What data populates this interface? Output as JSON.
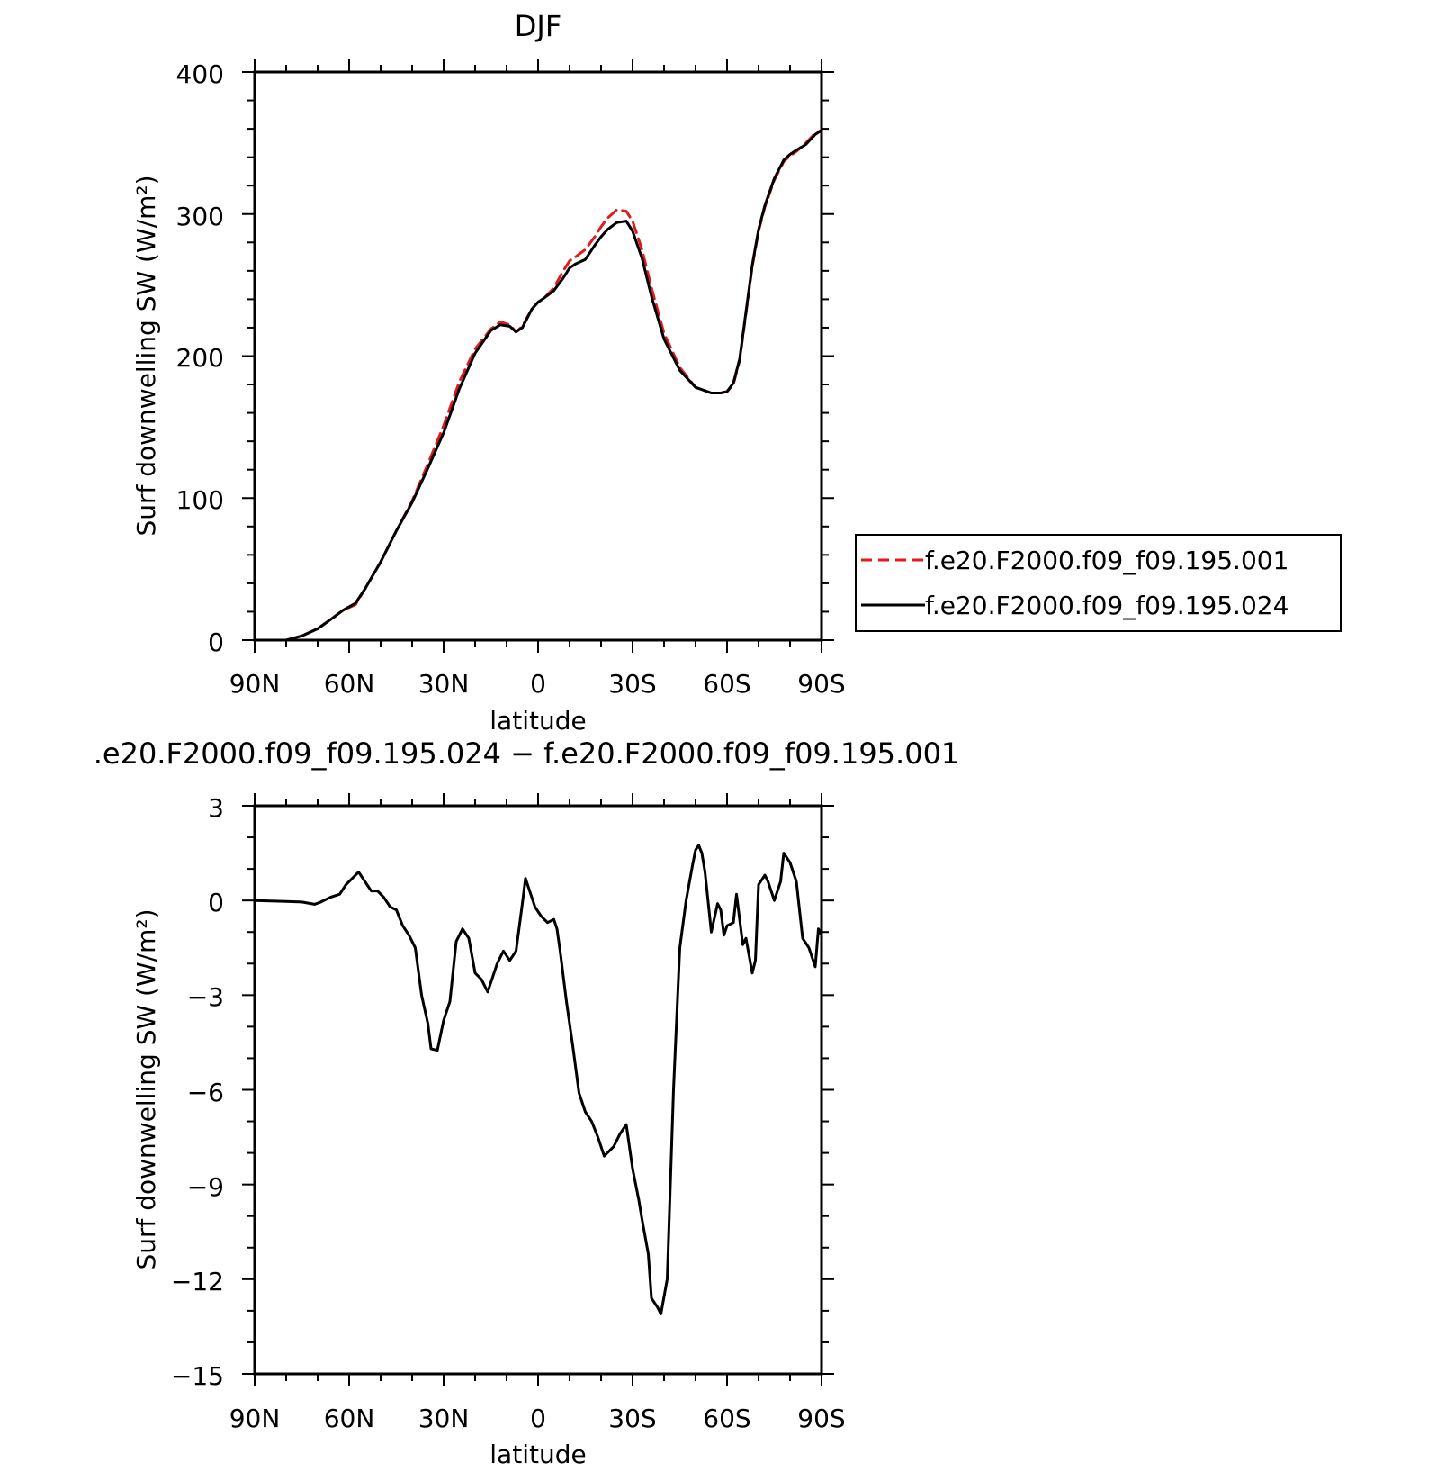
{
  "chart_data": [
    {
      "type": "line",
      "title": "DJF",
      "xlabel": "latitude",
      "ylabel": "Surf downwelling SW (W/m²)",
      "xlim": [
        -90,
        90
      ],
      "ylim": [
        0,
        400
      ],
      "x_direction": "90N on left to 90S on right",
      "xticks": [
        -90,
        -60,
        -30,
        0,
        30,
        60,
        90
      ],
      "xtick_labels": [
        "90N",
        "60N",
        "30N",
        "0",
        "30S",
        "60S",
        "90S"
      ],
      "yticks": [
        0,
        100,
        200,
        300,
        400
      ],
      "ytick_labels": [
        "0",
        "100",
        "200",
        "300",
        "400"
      ],
      "legend_position": "right",
      "series": [
        {
          "name": "f.e20.F2000.f09_f09.195.001",
          "color": "#e31a1c",
          "dash": "dashed",
          "x": [
            -90,
            -80,
            -75,
            -70,
            -65,
            -62,
            -58,
            -55,
            -50,
            -45,
            -40,
            -35,
            -30,
            -25,
            -20,
            -15,
            -12,
            -9,
            -7,
            -5,
            -2,
            0,
            2,
            5,
            8,
            10,
            12,
            15,
            18,
            20,
            22,
            25,
            28,
            30,
            33,
            36,
            40,
            45,
            50,
            55,
            58,
            60,
            62,
            64,
            66,
            68,
            70,
            72,
            75,
            78,
            80,
            82,
            85,
            88,
            90
          ],
          "y": [
            0,
            0,
            3,
            8,
            16,
            21,
            25,
            36,
            55,
            77,
            98,
            124,
            151,
            182,
            205,
            219,
            224,
            222,
            217,
            221,
            233,
            238,
            241,
            248,
            260,
            267,
            270,
            275,
            284,
            291,
            297,
            303,
            302,
            295,
            275,
            248,
            216,
            192,
            178,
            174,
            174,
            175,
            180,
            197,
            230,
            263,
            288,
            305,
            324,
            337,
            341,
            344,
            350,
            357,
            359
          ]
        },
        {
          "name": "f.e20.F2000.f09_f09.195.024",
          "color": "#000000",
          "dash": "solid",
          "x": [
            -90,
            -80,
            -75,
            -70,
            -65,
            -62,
            -58,
            -55,
            -50,
            -45,
            -40,
            -35,
            -30,
            -25,
            -20,
            -15,
            -12,
            -9,
            -7,
            -5,
            -2,
            0,
            2,
            5,
            8,
            10,
            12,
            15,
            18,
            20,
            22,
            25,
            28,
            30,
            33,
            36,
            40,
            45,
            50,
            55,
            58,
            60,
            62,
            64,
            66,
            68,
            70,
            72,
            75,
            78,
            80,
            82,
            85,
            88,
            90
          ],
          "y": [
            0,
            0,
            3,
            8,
            16,
            21,
            26,
            36,
            55,
            77,
            97,
            121,
            146,
            177,
            202,
            218,
            222,
            221,
            217,
            220,
            233,
            238,
            241,
            246,
            255,
            262,
            265,
            268,
            278,
            284,
            289,
            294,
            295,
            288,
            269,
            242,
            212,
            190,
            178,
            174,
            174,
            175,
            181,
            198,
            231,
            264,
            289,
            306,
            325,
            338,
            342,
            345,
            349,
            356,
            359
          ]
        }
      ]
    },
    {
      "type": "line",
      "title": ".e20.F2000.f09_f09.195.024 − f.e20.F2000.f09_f09.195.001",
      "xlabel": "latitude",
      "ylabel": "Surf downwelling SW (W/m²)",
      "xlim": [
        -90,
        90
      ],
      "ylim": [
        -15,
        3
      ],
      "x_direction": "90N on left to 90S on right",
      "xticks": [
        -90,
        -60,
        -30,
        0,
        30,
        60,
        90
      ],
      "xtick_labels": [
        "90N",
        "60N",
        "30N",
        "0",
        "30S",
        "60S",
        "90S"
      ],
      "yticks": [
        3,
        0,
        -3,
        -6,
        -9,
        -12,
        -15
      ],
      "ytick_labels": [
        "3",
        "0",
        "−3",
        "−6",
        "−9",
        "−12",
        "−15"
      ],
      "series": [
        {
          "color": "#000000",
          "dash": "solid",
          "x": [
            -90,
            -80,
            -75,
            -71,
            -69,
            -66,
            -63,
            -61,
            -59,
            -57,
            -55,
            -53,
            -51,
            -49,
            -47,
            -45,
            -43,
            -41,
            -39,
            -37,
            -35,
            -34,
            -32,
            -30,
            -28,
            -26,
            -24,
            -22,
            -20,
            -18,
            -16,
            -14,
            -13,
            -11,
            -9,
            -7,
            -5,
            -4,
            -2,
            -1,
            1,
            3,
            5,
            6,
            7,
            9,
            11,
            13,
            15,
            17,
            19,
            21,
            22,
            24,
            26,
            28,
            30,
            32,
            33,
            35,
            36,
            38,
            39,
            41,
            43,
            45,
            47,
            49,
            50,
            51,
            52,
            53,
            55,
            57,
            58,
            59,
            60,
            62,
            63,
            64,
            65,
            66,
            68,
            69,
            70,
            72,
            73,
            75,
            77,
            78,
            80,
            82,
            84,
            86,
            88,
            89,
            90
          ],
          "y": [
            0,
            -0.03,
            -0.05,
            -0.12,
            -0.05,
            0.1,
            0.2,
            0.5,
            0.7,
            0.9,
            0.6,
            0.3,
            0.3,
            0.1,
            -0.2,
            -0.3,
            -0.8,
            -1.1,
            -1.5,
            -3.0,
            -3.9,
            -4.7,
            -4.75,
            -3.8,
            -3.2,
            -1.3,
            -0.9,
            -1.2,
            -2.3,
            -2.5,
            -2.9,
            -2.3,
            -2.0,
            -1.6,
            -1.9,
            -1.6,
            -0.1,
            0.7,
            0.1,
            -0.2,
            -0.5,
            -0.7,
            -0.6,
            -0.9,
            -1.6,
            -3.2,
            -4.6,
            -6.1,
            -6.7,
            -7.0,
            -7.5,
            -8.1,
            -8.0,
            -7.8,
            -7.4,
            -7.1,
            -8.5,
            -9.5,
            -10.1,
            -11.2,
            -12.6,
            -12.9,
            -13.1,
            -12.0,
            -6.0,
            -1.5,
            0,
            1.1,
            1.6,
            1.75,
            1.5,
            0.9,
            -1.0,
            -0.1,
            -0.3,
            -1.1,
            -0.8,
            -0.7,
            0.2,
            -0.6,
            -1.4,
            -1.2,
            -2.3,
            -1.9,
            0.5,
            0.8,
            0.6,
            0,
            0.6,
            1.5,
            1.2,
            0.6,
            -1.2,
            -1.5,
            -2.1,
            -0.9,
            -1.1
          ]
        }
      ]
    }
  ]
}
